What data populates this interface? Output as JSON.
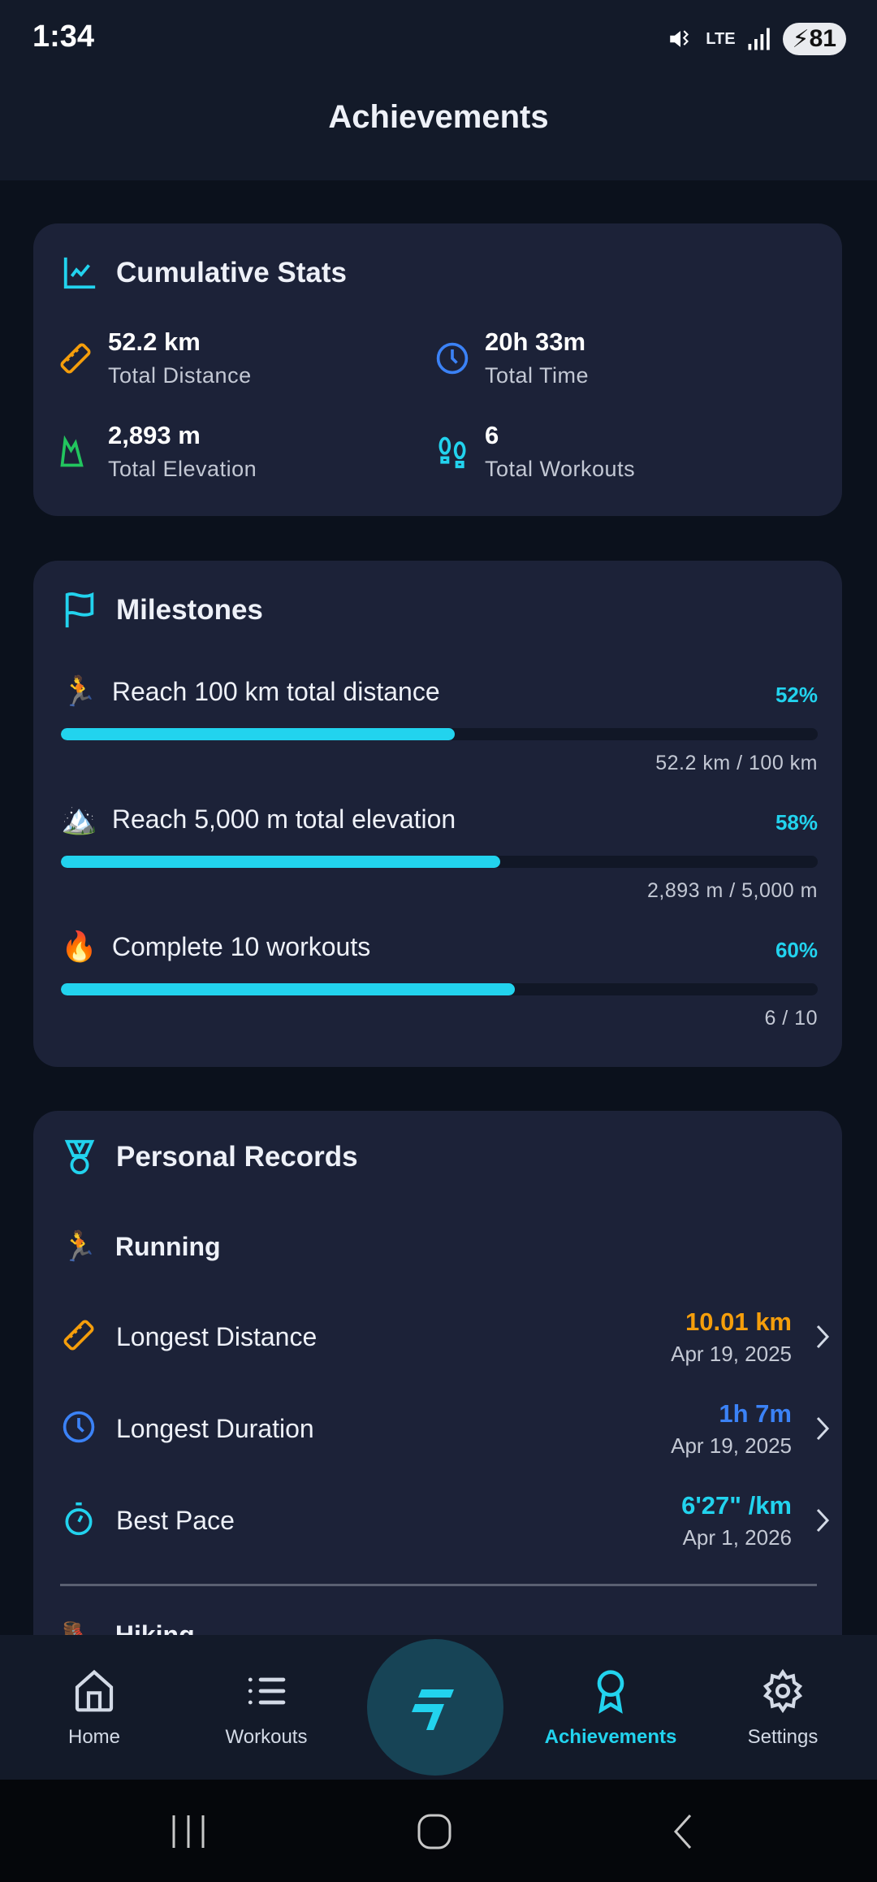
{
  "status_bar": {
    "time": "1:34",
    "network": "LTE",
    "battery": "81"
  },
  "header": {
    "title": "Achievements"
  },
  "cumulative": {
    "title": "Cumulative Stats",
    "stats": [
      {
        "value": "52.2 km",
        "label": "Total Distance",
        "icon": "ruler-icon",
        "color": "#f59e0b"
      },
      {
        "value": "20h 33m",
        "label": "Total Time",
        "icon": "clock-icon",
        "color": "#3b82f6"
      },
      {
        "value": "2,893 m",
        "label": "Total Elevation",
        "icon": "mountain-icon",
        "color": "#22c55e"
      },
      {
        "value": "6",
        "label": "Total Workouts",
        "icon": "footprints-icon",
        "color": "#22d3ee"
      }
    ]
  },
  "milestones": {
    "title": "Milestones",
    "items": [
      {
        "emoji": "🏃",
        "title": "Reach 100 km total distance",
        "percent": "52%",
        "progress": 52,
        "sub": "52.2 km / 100 km"
      },
      {
        "emoji": "🏔️",
        "title": "Reach 5,000 m total elevation",
        "percent": "58%",
        "progress": 58,
        "sub": "2,893 m / 5,000 m"
      },
      {
        "emoji": "🔥",
        "title": "Complete 10 workouts",
        "percent": "60%",
        "progress": 60,
        "sub": "6 / 10"
      }
    ]
  },
  "records": {
    "title": "Personal Records",
    "section": {
      "emoji": "🏃",
      "name": "Running"
    },
    "items": [
      {
        "label": "Longest Distance",
        "value": "10.01 km",
        "date": "Apr 19, 2025",
        "color": "#f59e0b",
        "icon": "ruler-icon"
      },
      {
        "label": "Longest Duration",
        "value": "1h 7m",
        "date": "Apr 19, 2025",
        "color": "#3b82f6",
        "icon": "clock-icon"
      },
      {
        "label": "Best Pace",
        "value": "6'27\" /km",
        "date": "Apr 1, 2026",
        "color": "#22d3ee",
        "icon": "stopwatch-icon"
      }
    ],
    "next_section": {
      "emoji": "🥾",
      "name": "Hiking"
    }
  },
  "nav": {
    "items": [
      {
        "label": "Home"
      },
      {
        "label": "Workouts"
      },
      {
        "label": "Achievements",
        "active": true
      },
      {
        "label": "Settings"
      }
    ]
  },
  "colors": {
    "accent": "#22d3ee",
    "card": "#1c2238",
    "background": "#0b111c"
  }
}
